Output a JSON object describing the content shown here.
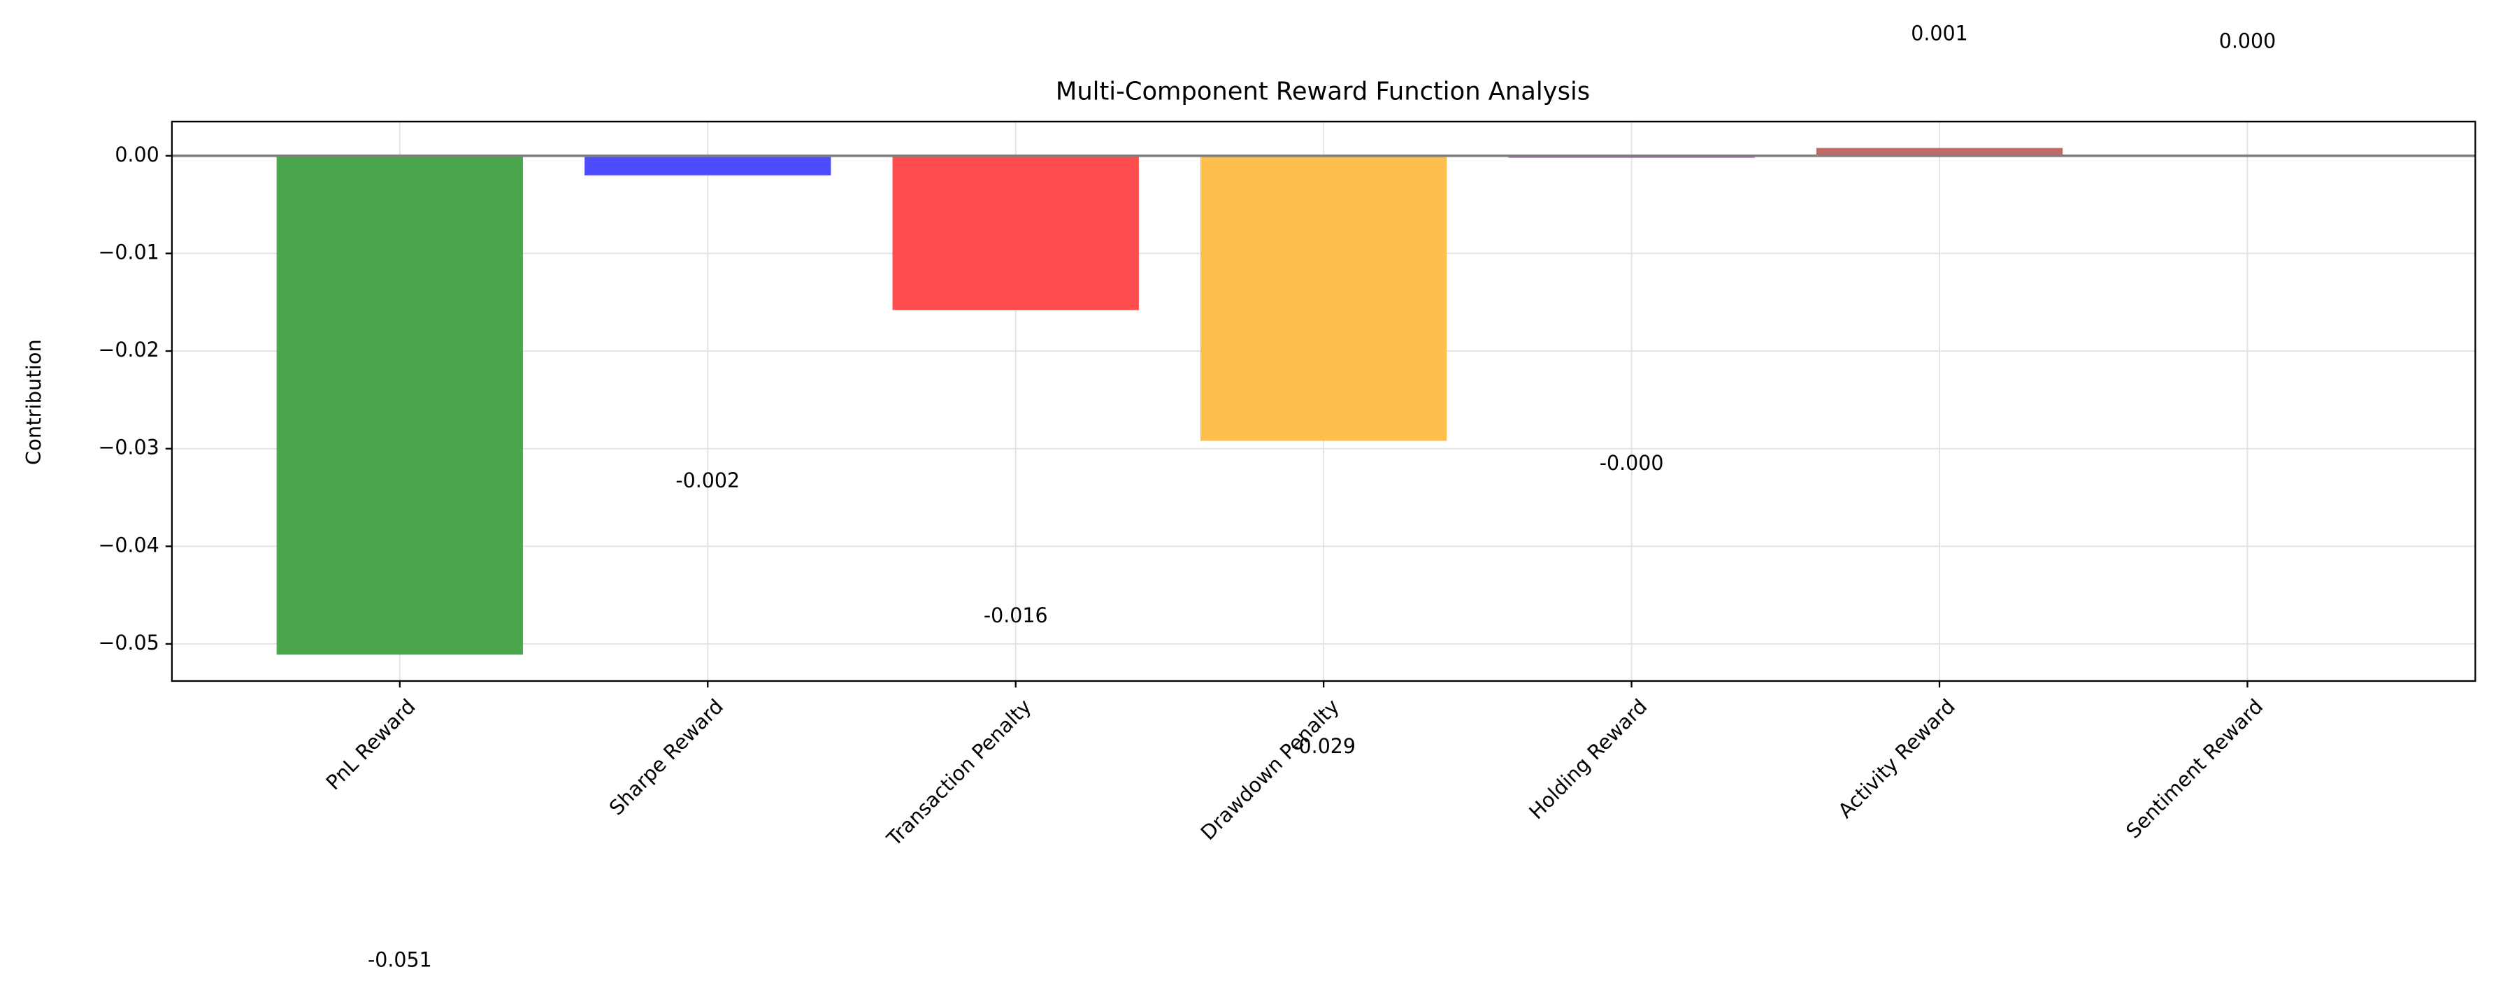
{
  "chart_data": {
    "type": "bar",
    "title": "Multi-Component Reward Function Analysis",
    "y_label": "Contribution",
    "categories": [
      "PnL Reward",
      "Sharpe Reward",
      "Transaction Penalty",
      "Drawdown Penalty",
      "Holding Reward",
      "Activity Reward",
      "Sentiment Reward"
    ],
    "values": [
      -0.0511,
      -0.002,
      -0.0158,
      -0.0292,
      -0.0002,
      0.0008,
      0.0
    ],
    "value_labels": [
      "-0.051",
      "-0.002",
      "-0.016",
      "-0.029",
      "-0.000",
      "0.001",
      "0.000"
    ],
    "colors": [
      "#4ca64c",
      "#4d4dff",
      "#ff4d4d",
      "#ffbf4d",
      "#a64da6",
      "#c06a6a",
      "#ff9ecf"
    ],
    "ylim": [
      -0.0538,
      0.0035
    ],
    "yticks": [
      {
        "value": 0,
        "label": "0.00"
      },
      {
        "value": -0.01,
        "label": "−0.01"
      },
      {
        "value": -0.02,
        "label": "−0.02"
      },
      {
        "value": -0.03,
        "label": "−0.03"
      },
      {
        "value": -0.04,
        "label": "−0.04"
      },
      {
        "value": -0.05,
        "label": "−0.05"
      }
    ],
    "grid": true
  }
}
